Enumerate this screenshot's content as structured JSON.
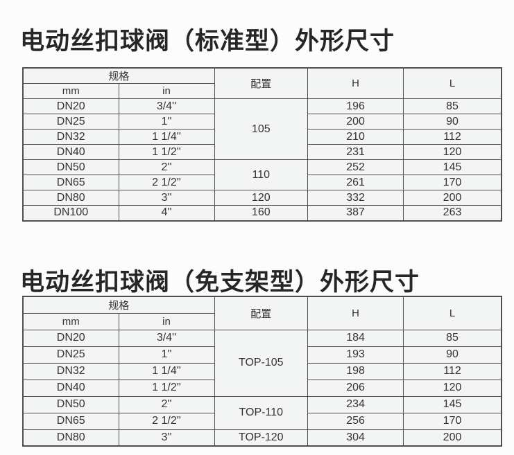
{
  "colors": {
    "page_bg": "#fcfcfc",
    "table_border": "#4f4f4f",
    "cell_bg": "#f3f4f4",
    "title_text": "#262626",
    "cell_text": "#333333"
  },
  "titles": {
    "standard": "电动丝扣球阀（标准型）外形尺寸",
    "bracketless": "电动丝扣球阀（免支架型）外形尺寸"
  },
  "table_headers": {
    "spec": "规格",
    "mm": "mm",
    "in": "in",
    "config": "配置",
    "h": "H",
    "l": "L"
  },
  "standard_table": {
    "rows": [
      {
        "mm": "DN20",
        "in": "3/4''",
        "config": "105",
        "h": "196",
        "l": "85"
      },
      {
        "mm": "DN25",
        "in": "1''",
        "h": "200",
        "l": "90"
      },
      {
        "mm": "DN32",
        "in": "1 1/4''",
        "h": "210",
        "l": "112"
      },
      {
        "mm": "DN40",
        "in": "1 1/2''",
        "h": "231",
        "l": "120"
      },
      {
        "mm": "DN50",
        "in": "2''",
        "config": "110",
        "h": "252",
        "l": "145"
      },
      {
        "mm": "DN65",
        "in": "2 1/2''",
        "h": "261",
        "l": "170"
      },
      {
        "mm": "DN80",
        "in": "3''",
        "config": "120",
        "h": "332",
        "l": "200"
      },
      {
        "mm": "DN100",
        "in": "4''",
        "config": "160",
        "h": "387",
        "l": "263"
      }
    ]
  },
  "bracketless_table": {
    "rows": [
      {
        "mm": "DN20",
        "in": "3/4''",
        "config": "TOP-105",
        "h": "184",
        "l": "85"
      },
      {
        "mm": "DN25",
        "in": "1''",
        "h": "193",
        "l": "90"
      },
      {
        "mm": "DN32",
        "in": "1 1/4''",
        "h": "198",
        "l": "112"
      },
      {
        "mm": "DN40",
        "in": "1 1/2''",
        "h": "206",
        "l": "120"
      },
      {
        "mm": "DN50",
        "in": "2''",
        "config": "TOP-110",
        "h": "234",
        "l": "145"
      },
      {
        "mm": "DN65",
        "in": "2 1/2''",
        "h": "256",
        "l": "170"
      },
      {
        "mm": "DN80",
        "in": "3''",
        "config": "TOP-120",
        "h": "304",
        "l": "200"
      }
    ]
  }
}
